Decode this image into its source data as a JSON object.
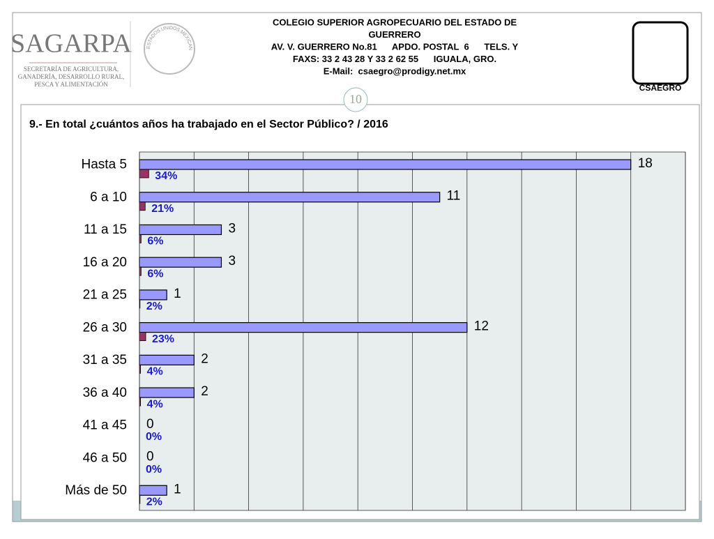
{
  "header": {
    "institution_lines": [
      "COLEGIO SUPERIOR AGROPECUARIO DEL ESTADO DE",
      "GUERRERO",
      "AV. V. GUERRERO No.81      APDO. POSTAL  6      TELS. Y",
      "FAXS: 33 2 43 28 Y 33 2 62 55      IGUALA, GRO.",
      "E-Mail:  csaegro@prodigy.net.mx"
    ],
    "sagarpa": "SAGARPA",
    "sagarpa_sub": [
      "SECRETARÍA DE AGRICULTURA,",
      "GANADERÍA, DESARROLLO RURAL,",
      "PESCA Y ALIMENTACIÓN"
    ],
    "seal_text": "ESTADOS UNIDOS MEXICANOS",
    "csaegro": "CSAEGRO",
    "page_number": "10"
  },
  "chart_data": {
    "type": "bar",
    "orientation": "horizontal",
    "title": "9.- En total ¿cuántos años ha trabajado en el Sector Público?  /   2016",
    "categories": [
      "Hasta 5",
      "6 a 10",
      "11 a 15",
      "16 a 20",
      "21 a 25",
      "26 a 30",
      "31 a 35",
      "36 a 40",
      "41 a 45",
      "46 a 50",
      "Más de 50"
    ],
    "series": [
      {
        "color": "#9999ff",
        "values": [
          18,
          11,
          3,
          3,
          1,
          12,
          2,
          2,
          0,
          0,
          1
        ]
      },
      {
        "color": "#993366",
        "values": [
          0.34,
          0.21,
          0.06,
          0.06,
          0.02,
          0.23,
          0.04,
          0.04,
          0,
          0,
          0.02
        ],
        "value_labels": [
          "34%",
          "21%",
          "6%",
          "6%",
          "2%",
          "23%",
          "4%",
          "4%",
          "0%",
          "0%",
          "2%"
        ]
      }
    ],
    "xlim": [
      0,
      20
    ],
    "xticks": [
      0,
      2,
      4,
      6,
      8,
      10,
      12,
      14,
      16,
      18,
      20
    ],
    "grid": true
  }
}
